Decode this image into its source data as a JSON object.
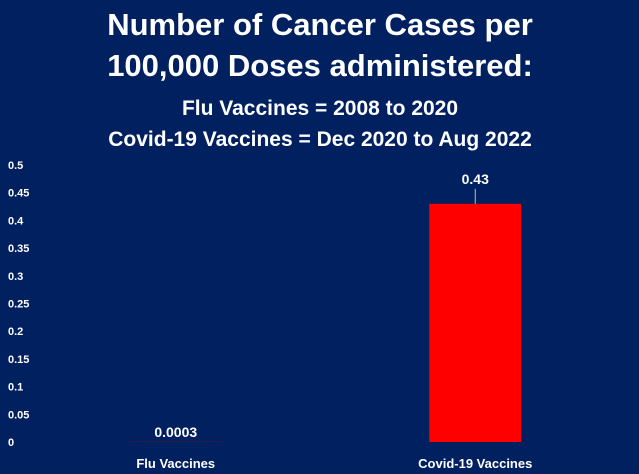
{
  "chart_data": {
    "type": "bar",
    "title": "Number of Cancer Cases per 100,000 Doses administered:",
    "title_lines": [
      "Number of Cancer Cases per",
      "100,000 Doses administered:"
    ],
    "subtitle_lines": [
      "Flu Vaccines = 2008 to 2020",
      "Covid-19 Vaccines = Dec 2020 to Aug 2022"
    ],
    "categories": [
      "Flu Vaccines",
      "Covid-19 Vaccines"
    ],
    "values": [
      0.0003,
      0.43
    ],
    "data_labels": [
      "0.0003",
      "0.43"
    ],
    "ylim": [
      0,
      0.5
    ],
    "yticks": [
      0,
      0.05,
      0.1,
      0.15,
      0.2,
      0.25,
      0.3,
      0.35,
      0.4,
      0.45,
      0.5
    ],
    "ytick_labels": [
      "0",
      "0.05",
      "0.1",
      "0.15",
      "0.2",
      "0.25",
      "0.3",
      "0.35",
      "0.4",
      "0.45",
      "0.5"
    ],
    "xlabel": "",
    "ylabel": "",
    "grid": false,
    "legend": false,
    "colors": {
      "background": "#002060",
      "bar": "#ff0000",
      "text": "#ffffff"
    }
  }
}
